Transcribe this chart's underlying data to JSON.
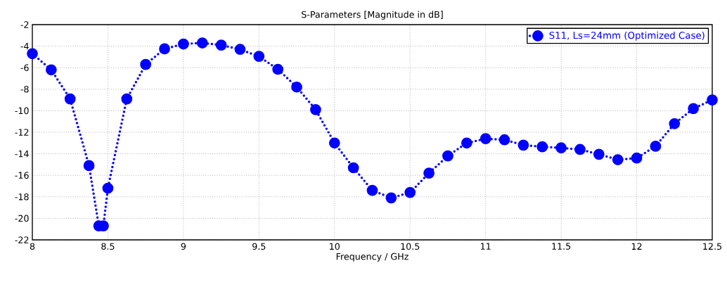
{
  "chart_data": {
    "type": "line",
    "title": "S-Parameters [Magnitude in dB]",
    "xlabel": "Frequency / GHz",
    "x": [
      8.0,
      8.125,
      8.25,
      8.375,
      8.44,
      8.47,
      8.5,
      8.625,
      8.75,
      8.875,
      9.0,
      9.125,
      9.25,
      9.375,
      9.5,
      9.625,
      9.75,
      9.875,
      10.0,
      10.125,
      10.25,
      10.375,
      10.5,
      10.625,
      10.75,
      10.875,
      11.0,
      11.125,
      11.25,
      11.375,
      11.5,
      11.625,
      11.75,
      11.875,
      12.0,
      12.125,
      12.25,
      12.375,
      12.5
    ],
    "series": [
      {
        "name": "S11, Ls=24mm (Optimized Case)",
        "color": "#0000ff",
        "values": [
          -4.7,
          -6.2,
          -8.9,
          -15.1,
          -20.7,
          -20.7,
          -17.2,
          -8.9,
          -5.7,
          -4.25,
          -3.8,
          -3.7,
          -3.9,
          -4.3,
          -4.95,
          -6.15,
          -7.8,
          -9.9,
          -13.0,
          -15.3,
          -17.4,
          -18.1,
          -17.6,
          -15.8,
          -14.2,
          -13.0,
          -12.6,
          -12.7,
          -13.2,
          -13.35,
          -13.45,
          -13.6,
          -14.05,
          -14.55,
          -14.4,
          -13.3,
          -11.2,
          -9.8,
          -9.0
        ]
      }
    ],
    "xlim": [
      8,
      12.5
    ],
    "ylim": [
      -22,
      -2
    ],
    "xticks": [
      8,
      8.5,
      9,
      9.5,
      10,
      10.5,
      11,
      11.5,
      12,
      12.5
    ],
    "yticks": [
      -22,
      -20,
      -18,
      -16,
      -14,
      -12,
      -10,
      -8,
      -6,
      -4,
      -2
    ],
    "grid": true,
    "legend": "top right",
    "marker": "circle",
    "line_style": "dotted"
  }
}
